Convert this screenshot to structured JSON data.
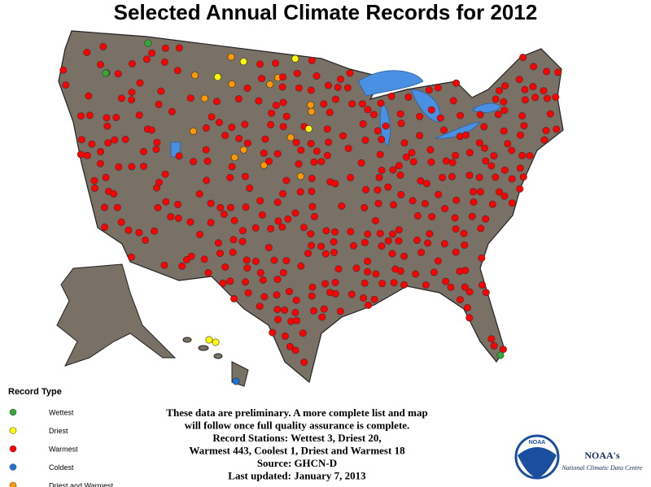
{
  "header": {
    "title": "Selected Annual Climate Records for 2012"
  },
  "legend": {
    "title": "Record Type",
    "items": [
      {
        "label": "Wettest",
        "color": "#33aa33"
      },
      {
        "label": "Driest",
        "color": "#ffff00"
      },
      {
        "label": "Warmest",
        "color": "#ff0000"
      },
      {
        "label": "Coldest",
        "color": "#1e73d6"
      },
      {
        "label": "Driest and Warmest",
        "color": "#ff9900"
      }
    ]
  },
  "notes": [
    "These data are preliminary. A more complete list and map",
    "will follow once full quality assurance is complete.",
    "Record Stations: Wettest 3, Driest 20,",
    "Warmest 443, Coolest 1, Driest and Warmest 18",
    "Source: GHCN-D",
    "Last updated: January 7, 2013"
  ],
  "logo": {
    "name": "NOAA's",
    "center": "National Climatic Data Centre",
    "badge": "NOAA"
  }
}
